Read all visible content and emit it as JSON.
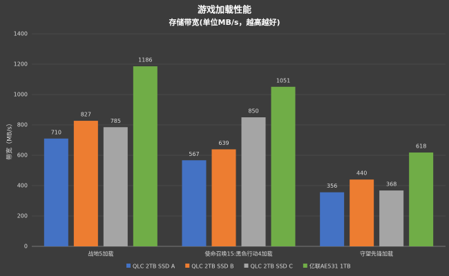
{
  "chart_data": {
    "type": "bar",
    "title": "游戏加载性能",
    "subtitle": "存储带宽(单位MB/s，越高越好)",
    "y_label": "带宽（MB/s）",
    "categories": [
      "战地5加载",
      "使命召唤15:黑色行动4加载",
      "守望先锋加载"
    ],
    "series": [
      {
        "name": "QLC 2TB SSD A",
        "color": "#4472c4",
        "values": [
          710,
          567,
          356
        ]
      },
      {
        "name": "QLC 2TB SSD B",
        "color": "#ed7d31",
        "values": [
          827,
          639,
          440
        ]
      },
      {
        "name": "QLC 2TB SSD C",
        "color": "#a5a5a5",
        "values": [
          785,
          850,
          368
        ]
      },
      {
        "name": "亿联AE531 1TB",
        "color": "#70ad47",
        "values": [
          1186,
          1051,
          618
        ]
      }
    ],
    "ylim": [
      0,
      1400
    ],
    "yticks": [
      0,
      200,
      400,
      600,
      800,
      1000,
      1200,
      1400
    ],
    "grid": true
  }
}
